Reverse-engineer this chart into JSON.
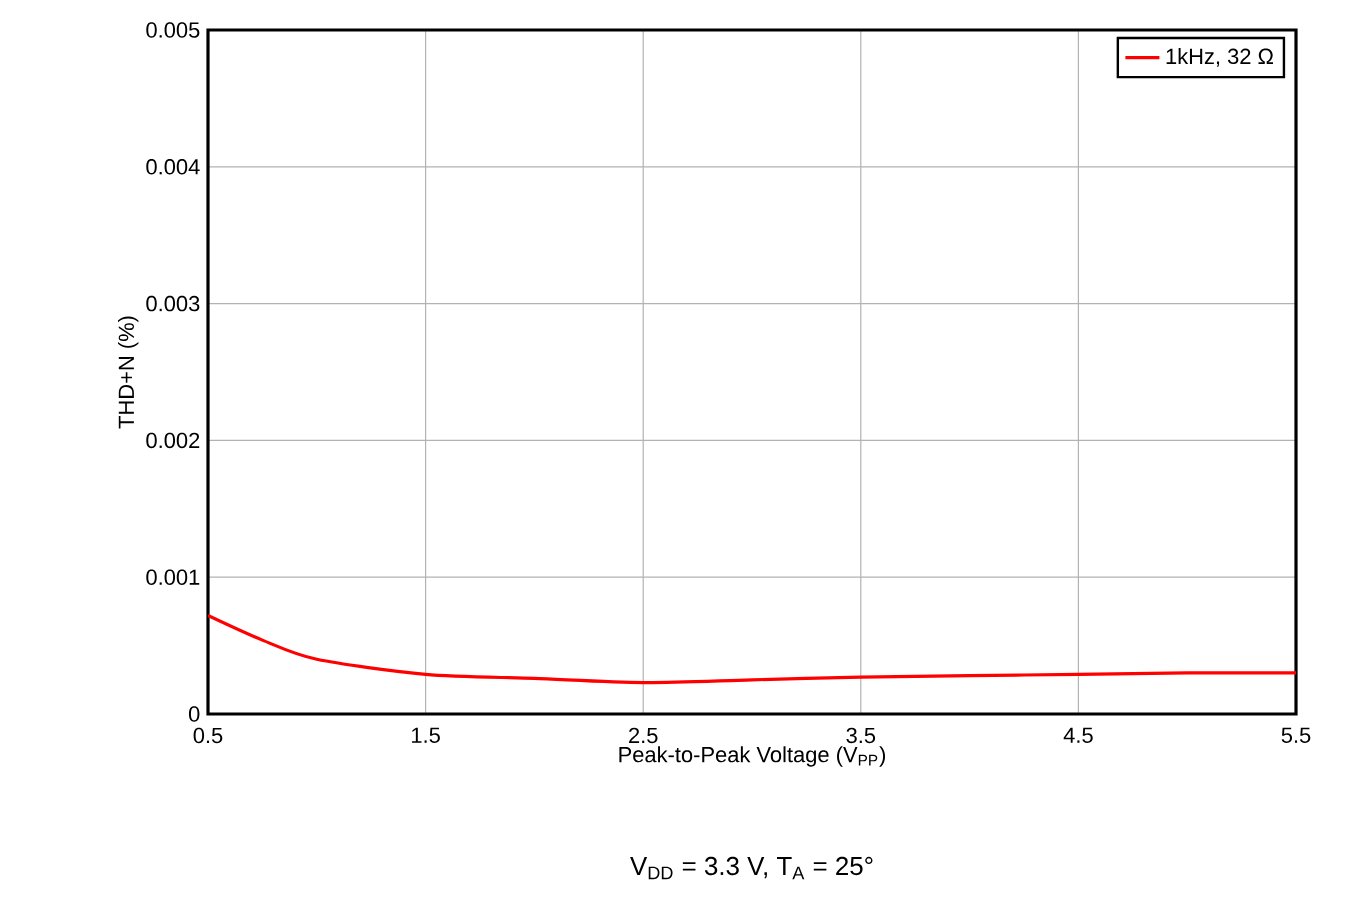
{
  "chart_data": {
    "type": "line",
    "xlabel": "Peak-to-Peak Voltage (V$_{PP}$)",
    "ylabel": "THD+N (%)",
    "annotations": [
      "V$_{DD}$ = 3.3 V, T$_{A}$ = 25°"
    ],
    "x": [
      0.5,
      0.75,
      1.0,
      1.5,
      2.0,
      2.5,
      3.0,
      3.5,
      4.0,
      4.5,
      5.0,
      5.5
    ],
    "series": [
      {
        "name": "1kHz, 32 Ω",
        "color": "#ff0000",
        "values": [
          0.00072,
          0.00054,
          0.0004,
          0.00029,
          0.00026,
          0.00023,
          0.00025,
          0.00027,
          0.00028,
          0.00029,
          0.0003,
          0.0003
        ]
      }
    ],
    "xlim": [
      0.5,
      5.5
    ],
    "xticks": [
      0.5,
      1.5,
      2.5,
      3.5,
      4.5,
      5.5
    ],
    "ylim": [
      0,
      0.005
    ],
    "yticks": [
      0,
      0.001,
      0.002,
      0.003,
      0.004,
      0.005
    ],
    "grid": true,
    "legend": "top right",
    "marker": "none",
    "line_style": "solid"
  }
}
